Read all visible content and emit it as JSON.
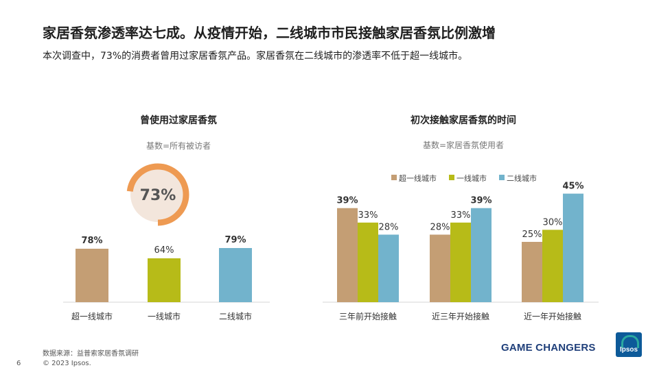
{
  "header": {
    "title": "家居香氛渗透率达七成。从疫情开始，二线城市市民接触家居香氛比例激增",
    "subtitle": "本次调查中，73%的消费者曾用过家居香氛产品。家居香氛在二线城市的渗透率不低于超一线城市。"
  },
  "colors": {
    "tier_super": "#c49e74",
    "tier_one": "#b7bb18",
    "tier_two": "#72b3cc",
    "donut": "#ee9a52",
    "donut_bg": "#f3e6dc"
  },
  "left_chart": {
    "title": "曾使用过家居香氛",
    "base": "基数=所有被访者"
  },
  "right_chart": {
    "title": "初次接触家居香氛的时间",
    "base": "基数=家居香氛使用者"
  },
  "chart_data": [
    {
      "type": "pie",
      "values": [
        73
      ],
      "labels": [
        "73%"
      ]
    },
    {
      "type": "bar",
      "categories": [
        "超一线城市",
        "一线城市",
        "二线城市"
      ],
      "values": [
        78,
        64,
        79
      ],
      "labels": [
        "78%",
        "64%",
        "79%"
      ],
      "bold": [
        true,
        false,
        true
      ]
    },
    {
      "type": "bar",
      "categories": [
        "三年前开始接触",
        "近三年开始接触",
        "近一年开始接触"
      ],
      "series": [
        {
          "name": "超一线城市",
          "values": [
            39,
            28,
            25
          ],
          "labels": [
            "39%",
            "28%",
            "25%"
          ],
          "bold": [
            true,
            false,
            false
          ]
        },
        {
          "name": "一线城市",
          "values": [
            33,
            33,
            30
          ],
          "labels": [
            "33%",
            "33%",
            "30%"
          ],
          "bold": [
            false,
            false,
            false
          ]
        },
        {
          "name": "二线城市",
          "values": [
            28,
            39,
            45
          ],
          "labels": [
            "28%",
            "39%",
            "45%"
          ],
          "bold": [
            false,
            true,
            true
          ]
        }
      ]
    }
  ],
  "footer": {
    "source": "数据来源：益普索家居香氛调研",
    "copyright": "© 2023 Ipsos.",
    "page": "6",
    "brand": "GAME CHANGERS",
    "logo": "Ipsos"
  }
}
